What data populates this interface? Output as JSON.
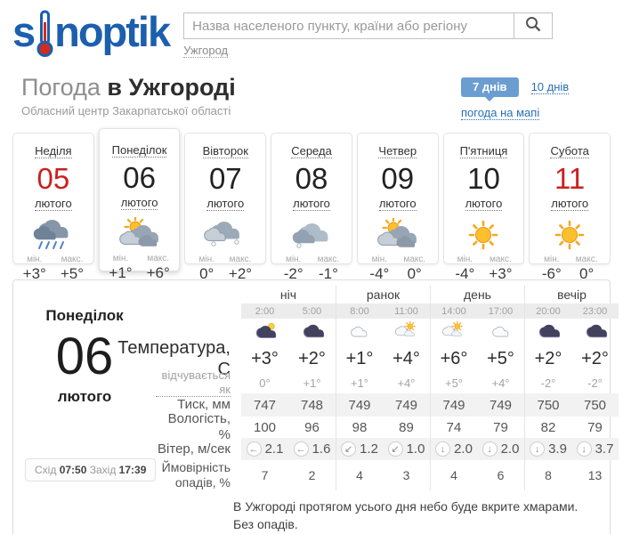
{
  "logo": {
    "part1": "s",
    "part2": "noptik",
    "icon": "thermometer-icon"
  },
  "search": {
    "placeholder": "Назва населеного пункту, країни або регіону",
    "button_icon": "search-icon",
    "current_city": "Ужгород"
  },
  "header": {
    "title_prefix": "Погода",
    "title_city": "в Ужгороді",
    "subtitle": "Обласний центр Закарпатської області",
    "range_7_label": "7 днів",
    "range_10_label": "10 днів",
    "map_link_label": "погода на мапі"
  },
  "min_label": "мін.",
  "max_label": "макс.",
  "days": [
    {
      "name": "Неділя",
      "date": "05",
      "month": "лютого",
      "icon": "cloud-rain",
      "min": "+3°",
      "max": "+5°",
      "weekend": true,
      "selected": false
    },
    {
      "name": "Понеділок",
      "date": "06",
      "month": "лютого",
      "icon": "sun-cloud",
      "min": "+1°",
      "max": "+6°",
      "weekend": false,
      "selected": true
    },
    {
      "name": "Вівторок",
      "date": "07",
      "month": "лютого",
      "icon": "cloud-snow",
      "min": "0°",
      "max": "+2°",
      "weekend": false,
      "selected": false
    },
    {
      "name": "Середа",
      "date": "08",
      "month": "лютого",
      "icon": "cloud-snow2",
      "min": "-2°",
      "max": "-1°",
      "weekend": false,
      "selected": false
    },
    {
      "name": "Четвер",
      "date": "09",
      "month": "лютого",
      "icon": "sun-cloud",
      "min": "-4°",
      "max": "0°",
      "weekend": false,
      "selected": false
    },
    {
      "name": "П'ятниця",
      "date": "10",
      "month": "лютого",
      "icon": "sun",
      "min": "-4°",
      "max": "+3°",
      "weekend": false,
      "selected": false
    },
    {
      "name": "Субота",
      "date": "11",
      "month": "лютого",
      "icon": "sun",
      "min": "-6°",
      "max": "0°",
      "weekend": true,
      "selected": false
    }
  ],
  "detail": {
    "day_name": "Понеділок",
    "date": "06",
    "month": "лютого",
    "sunrise_label": "Схід",
    "sunrise": "07:50",
    "sunset_label": "Захід",
    "sunset": "17:39",
    "groups": [
      "ніч",
      "ранок",
      "день",
      "вечір"
    ],
    "times": [
      "2:00",
      "5:00",
      "8:00",
      "11:00",
      "14:00",
      "17:00",
      "20:00",
      "23:00"
    ],
    "icons": [
      "night-cloud-moon",
      "night-cloud",
      "cloud-light",
      "cloud-sun-small",
      "cloud-sun-small",
      "cloud-light",
      "night-cloud",
      "night-cloud"
    ],
    "rows": [
      {
        "label": "Температура, C",
        "style": "temp",
        "values": [
          "+3°",
          "+2°",
          "+1°",
          "+4°",
          "+6°",
          "+5°",
          "+2°",
          "+2°"
        ]
      },
      {
        "label": "відчувається як",
        "style": "feels",
        "link": true,
        "values": [
          "0°",
          "+1°",
          "+1°",
          "+4°",
          "+5°",
          "+4°",
          "-2°",
          "-2°"
        ]
      },
      {
        "label": "Тиск, мм",
        "style": "press",
        "striped": true,
        "values": [
          "747",
          "748",
          "749",
          "749",
          "749",
          "749",
          "750",
          "750"
        ]
      },
      {
        "label": "Вологість, %",
        "style": "hum",
        "values": [
          "100",
          "96",
          "98",
          "89",
          "74",
          "79",
          "82",
          "79"
        ]
      },
      {
        "label": "Вітер, м/сек",
        "style": "wind",
        "striped": true,
        "values": [
          "2.1",
          "1.6",
          "1.2",
          "1.0",
          "2.0",
          "2.0",
          "3.9",
          "3.7"
        ],
        "arrows": [
          "arrow-left",
          "arrow-left",
          "arrow-down-left",
          "arrow-down-left",
          "arrow-down",
          "arrow-down",
          "arrow-down",
          "arrow-down"
        ]
      },
      {
        "label": "Ймовірність опадів, %",
        "style": "prob",
        "values": [
          "7",
          "2",
          "4",
          "3",
          "4",
          "6",
          "8",
          "13"
        ]
      }
    ],
    "summary": "В Ужгороді протягом усього дня небо буде вкрите хмарами. Без опадів."
  },
  "colors": {
    "logo_blue": "#1b5fae",
    "link_blue": "#2a6fb5",
    "button_blue": "#6b9dd1",
    "weekend_red": "#cc2020",
    "stripe_gray": "#f2f2f2",
    "time_band_gray": "#ececec"
  }
}
